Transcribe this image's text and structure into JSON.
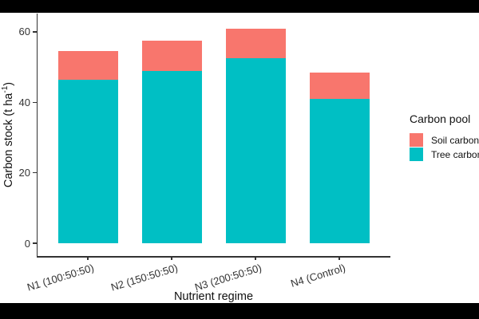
{
  "chart_data": {
    "type": "bar",
    "stacked": true,
    "categories": [
      "N1 (100:50:50)",
      "N2 (150:50:50)",
      "N3 (200:50:50)",
      "N4 (Control)"
    ],
    "series": [
      {
        "name": "Soil carbon",
        "color": "#F8766D",
        "values": [
          8,
          8.5,
          8.5,
          7.5
        ]
      },
      {
        "name": "Tree carbon",
        "color": "#00BFC4",
        "values": [
          46.5,
          49,
          52.5,
          41
        ]
      }
    ],
    "stack_order_bottom_to_top": [
      "Tree carbon",
      "Soil carbon"
    ],
    "totals": [
      54.5,
      57.5,
      61,
      48.5
    ],
    "xlabel": "Nutrient regime",
    "ylabel": "Carbon stock (t ha-1)",
    "ylabel_parts": {
      "pre": "Carbon stock (t ha",
      "sup": "-1",
      "post": ")"
    },
    "ytick_values": [
      0,
      20,
      40,
      60
    ],
    "ylim": [
      0,
      61
    ],
    "grid": false,
    "legend": {
      "title": "Carbon pool",
      "position": "right",
      "entries": [
        {
          "label": "Soil carbon",
          "color": "#F8766D"
        },
        {
          "label": "Tree carbon",
          "color": "#00BFC4"
        }
      ]
    },
    "colors": {
      "axis": "#333333",
      "tick_text": "#333333",
      "title_text": "#111111",
      "panel_background": "#ffffff",
      "letterbox": "#000000"
    }
  }
}
